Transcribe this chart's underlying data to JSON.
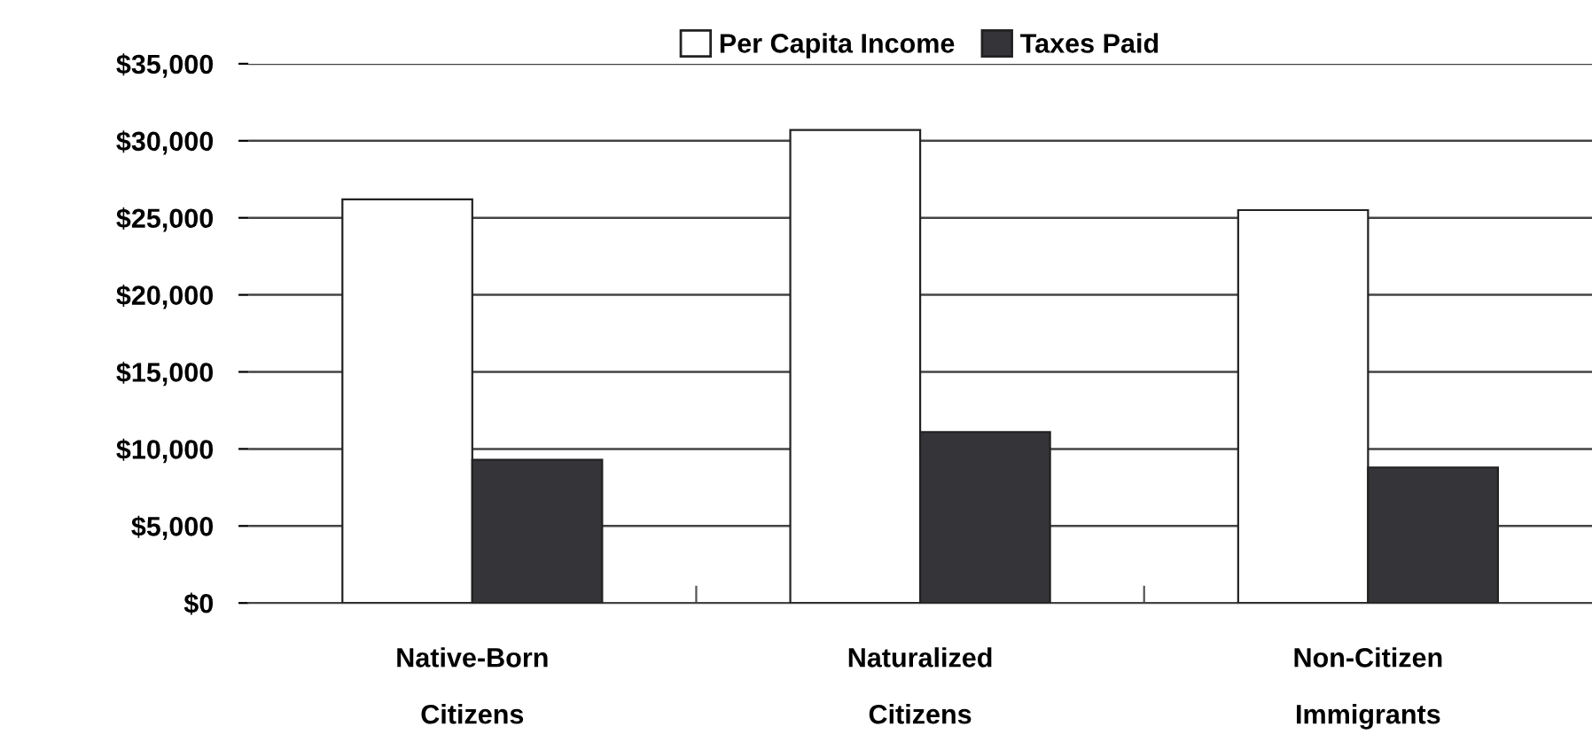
{
  "chart_data": {
    "type": "bar",
    "categories": [
      "Native-Born\nCitizens",
      "Naturalized\nCitizens",
      "Non-Citizen\nImmigrants"
    ],
    "series": [
      {
        "name": "Per Capita Income",
        "color": "#ffffff",
        "values": [
          26200,
          30700,
          25500
        ]
      },
      {
        "name": "Taxes Paid",
        "color": "#353539",
        "values": [
          9300,
          11100,
          8800
        ]
      }
    ],
    "ylim": [
      0,
      35000
    ],
    "yticks": [
      {
        "value": 0,
        "label": "$0"
      },
      {
        "value": 5000,
        "label": "$5,000"
      },
      {
        "value": 10000,
        "label": "$10,000"
      },
      {
        "value": 15000,
        "label": "$15,000"
      },
      {
        "value": 20000,
        "label": "$20,000"
      },
      {
        "value": 25000,
        "label": "$25,000"
      },
      {
        "value": 30000,
        "label": "$30,000"
      },
      {
        "value": 35000,
        "label": "$35,000"
      }
    ],
    "grid": "y",
    "legend": "top"
  }
}
